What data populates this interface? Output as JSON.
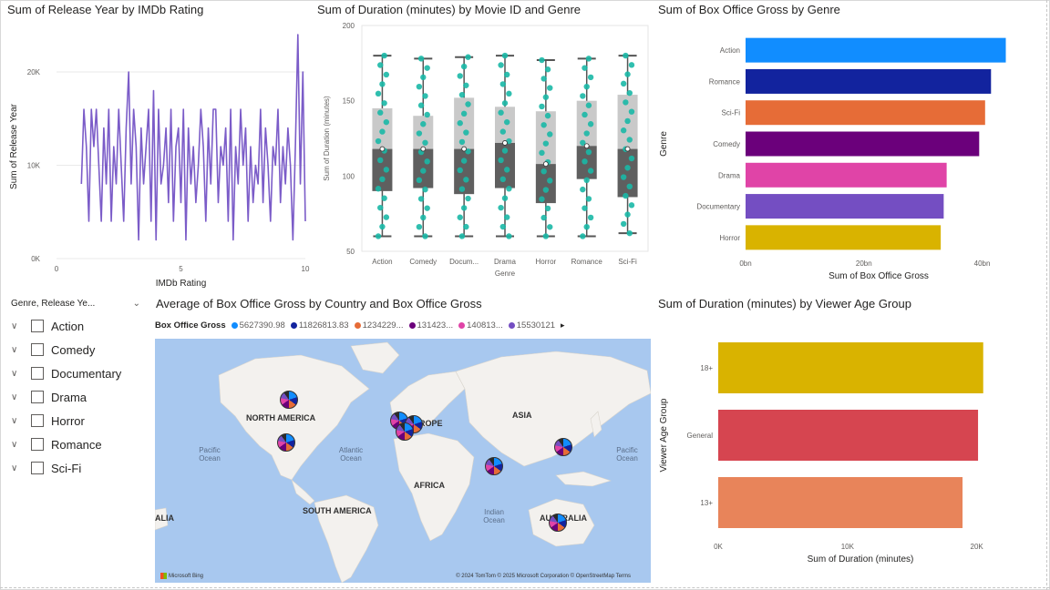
{
  "colors": {
    "line": "#7B5CC8",
    "box_dots": "#1AB8A6",
    "Action": "#118DFF",
    "Romance": "#12239E",
    "Sci-Fi": "#E66C37",
    "Comedy": "#6B007B",
    "Drama": "#E044A7",
    "Documentary": "#744EC2",
    "Horror": "#D9B300",
    "18+": "#D9B300",
    "General": "#D64550",
    "13+": "#E8845A",
    "map_water": "#a8c8ef"
  },
  "line_chart": {
    "title": "Sum of Release Year by IMDb Rating",
    "xlabel": "IMDb Rating",
    "ylabel": "Sum of Release Year",
    "x_ticks": [
      "0",
      "5",
      "10"
    ],
    "y_ticks": [
      "0K",
      "10K",
      "20K"
    ]
  },
  "box_chart": {
    "title": "Sum of Duration (minutes) by Movie ID and Genre",
    "xlabel": "Genre",
    "ylabel": "Sum of Duration (minutes)",
    "y_ticks": [
      "50",
      "100",
      "150",
      "200"
    ],
    "categories": [
      "Action",
      "Comedy",
      "Docum...",
      "Drama",
      "Horror",
      "Romance",
      "Sci-Fi"
    ]
  },
  "genre_bar": {
    "title": "Sum of Box Office Gross by Genre",
    "xlabel": "Sum of Box Office Gross",
    "ylabel": "Genre",
    "x_ticks": [
      "0bn",
      "20bn",
      "40bn"
    ]
  },
  "slicer": {
    "header": "Genre, Release Ye...",
    "items": [
      "Action",
      "Comedy",
      "Documentary",
      "Drama",
      "Horror",
      "Romance",
      "Sci-Fi"
    ]
  },
  "map": {
    "title": "Average of Box Office Gross by Country and Box Office Gross",
    "legend_label": "Box Office Gross",
    "legend_items": [
      {
        "text": "5627390.98",
        "color": "#118DFF"
      },
      {
        "text": "11826813.83",
        "color": "#12239E"
      },
      {
        "text": "1234229...",
        "color": "#E66C37"
      },
      {
        "text": "131423...",
        "color": "#6B007B"
      },
      {
        "text": "140813...",
        "color": "#E044A7"
      },
      {
        "text": "15530121",
        "color": "#744EC2"
      }
    ],
    "legend_more": "▸",
    "continents": {
      "north_america": "NORTH AMERICA",
      "europe": "ROPE",
      "asia": "ASIA",
      "africa": "AFRICA",
      "south_america": "SOUTH AMERICA",
      "australia": "AUSTRALIA",
      "left_cut": "ALIA"
    },
    "oceans": {
      "pacific_left": "Pacific Ocean",
      "atlantic": "Atlantic Ocean",
      "indian": "Indian Ocean",
      "pacific_right": "Pacific Ocean"
    },
    "bing": "Microsoft Bing",
    "credit": "© 2024 TomTom  © 2025 Microsoft Corporation  © OpenStreetMap  Terms"
  },
  "age_bar": {
    "title": "Sum of Duration (minutes) by Viewer Age Group",
    "xlabel": "Sum of Duration (minutes)",
    "ylabel": "Viewer Age Group",
    "x_ticks": [
      "0K",
      "10K",
      "20K"
    ]
  },
  "chart_data": [
    {
      "type": "line",
      "title": "Sum of Release Year by IMDb Rating",
      "xlabel": "IMDb Rating",
      "ylabel": "Sum of Release Year",
      "xlim": [
        0,
        10
      ],
      "ylim": [
        0,
        24000
      ],
      "x": [
        1.0,
        1.1,
        1.2,
        1.3,
        1.4,
        1.5,
        1.6,
        1.7,
        1.8,
        1.9,
        2.0,
        2.1,
        2.2,
        2.3,
        2.4,
        2.5,
        2.6,
        2.7,
        2.8,
        2.9,
        3.0,
        3.1,
        3.2,
        3.3,
        3.4,
        3.5,
        3.6,
        3.7,
        3.8,
        3.9,
        4.0,
        4.1,
        4.2,
        4.3,
        4.4,
        4.5,
        4.6,
        4.7,
        4.8,
        4.9,
        5.0,
        5.1,
        5.2,
        5.3,
        5.4,
        5.5,
        5.6,
        5.7,
        5.8,
        5.9,
        6.0,
        6.1,
        6.2,
        6.3,
        6.4,
        6.5,
        6.6,
        6.7,
        6.8,
        6.9,
        7.0,
        7.1,
        7.2,
        7.3,
        7.4,
        7.5,
        7.6,
        7.7,
        7.8,
        7.9,
        8.0,
        8.1,
        8.2,
        8.3,
        8.4,
        8.5,
        8.6,
        8.7,
        8.8,
        8.9,
        9.0,
        9.1,
        9.2,
        9.3,
        9.4,
        9.5,
        9.6,
        9.7,
        9.8,
        9.9,
        10.0
      ],
      "values": [
        8000,
        16000,
        12000,
        4000,
        16000,
        12000,
        16000,
        10000,
        4000,
        14000,
        8000,
        16000,
        4000,
        12000,
        8000,
        16000,
        10000,
        4000,
        14000,
        20000,
        8000,
        16000,
        12000,
        2000,
        14000,
        8000,
        12000,
        16000,
        4000,
        18000,
        2000,
        16000,
        8000,
        10000,
        14000,
        6000,
        16000,
        4000,
        12000,
        14000,
        6000,
        16000,
        2000,
        14000,
        8000,
        12000,
        6000,
        10000,
        16000,
        12000,
        4000,
        14000,
        8000,
        16000,
        16000,
        6000,
        12000,
        10000,
        14000,
        4000,
        16000,
        2000,
        12000,
        8000,
        16000,
        10000,
        14000,
        4000,
        12000,
        6000,
        10000,
        8000,
        16000,
        6000,
        14000,
        10000,
        4000,
        12000,
        10000,
        16000,
        6000,
        12000,
        8000,
        14000,
        10000,
        2000,
        12000,
        24000,
        8000,
        20000,
        4000
      ]
    },
    {
      "type": "box",
      "title": "Sum of Duration (minutes) by Movie ID and Genre",
      "xlabel": "Genre",
      "ylabel": "Sum of Duration (minutes)",
      "ylim": [
        50,
        200
      ],
      "categories": [
        "Action",
        "Comedy",
        "Documentary",
        "Drama",
        "Horror",
        "Romance",
        "Sci-Fi"
      ],
      "min": [
        60,
        60,
        60,
        60,
        60,
        60,
        62
      ],
      "q1": [
        90,
        92,
        88,
        92,
        82,
        98,
        86
      ],
      "median": [
        118,
        118,
        118,
        122,
        108,
        120,
        118
      ],
      "q3": [
        145,
        140,
        152,
        146,
        143,
        150,
        154
      ],
      "max": [
        180,
        178,
        179,
        180,
        177,
        178,
        180
      ]
    },
    {
      "type": "bar",
      "orientation": "horizontal",
      "title": "Sum of Box Office Gross by Genre",
      "xlabel": "Sum of Box Office Gross",
      "ylabel": "Genre",
      "xlim": [
        0,
        45
      ],
      "x_unit": "bn",
      "categories": [
        "Action",
        "Romance",
        "Sci-Fi",
        "Comedy",
        "Drama",
        "Documentary",
        "Horror"
      ],
      "values": [
        44,
        41.5,
        40.5,
        39.5,
        34,
        33.5,
        33
      ]
    },
    {
      "type": "bar",
      "orientation": "horizontal",
      "title": "Sum of Duration (minutes) by Viewer Age Group",
      "xlabel": "Sum of Duration (minutes)",
      "ylabel": "Viewer Age Group",
      "xlim": [
        0,
        22000
      ],
      "categories": [
        "18+",
        "General",
        "13+"
      ],
      "values": [
        20500,
        20100,
        18900
      ]
    }
  ]
}
